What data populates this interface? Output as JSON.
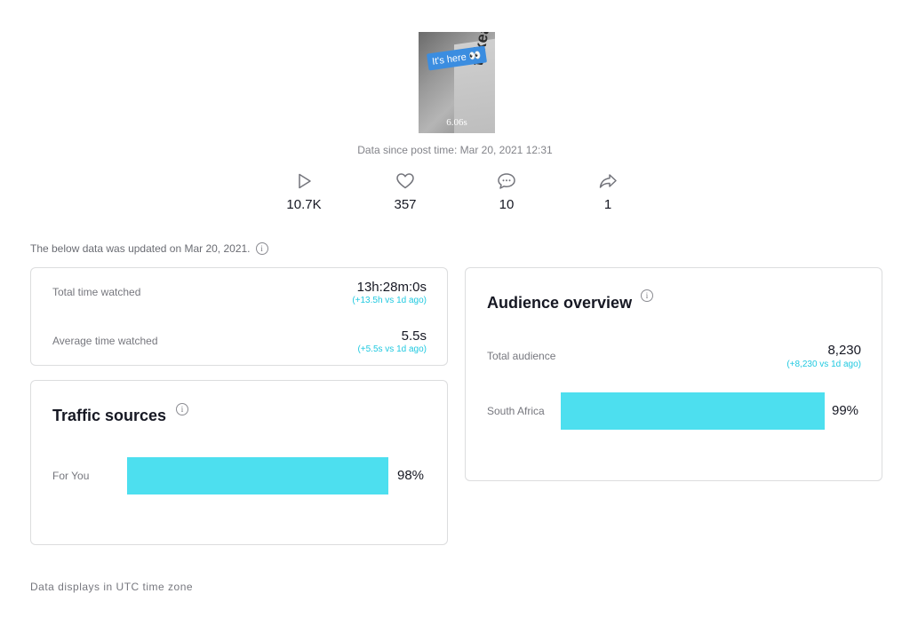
{
  "video": {
    "sticker_text": "It's here 👀",
    "brand_text": "takea",
    "duration": "6.06s"
  },
  "since_text": "Data since post time: Mar 20, 2021 12:31",
  "stats": [
    {
      "icon": "play-icon",
      "value": "10.7K"
    },
    {
      "icon": "heart-icon",
      "value": "357"
    },
    {
      "icon": "comment-icon",
      "value": "10"
    },
    {
      "icon": "share-icon",
      "value": "1"
    }
  ],
  "updated_text": "The below data was updated on Mar 20, 2021.",
  "watch": {
    "total_label": "Total time watched",
    "total_value": "13h:28m:0s",
    "total_delta": "(+13.5h vs 1d ago)",
    "avg_label": "Average time watched",
    "avg_value": "5.5s",
    "avg_delta": "(+5.5s vs 1d ago)"
  },
  "traffic": {
    "title": "Traffic sources",
    "source_label": "For You",
    "source_percent": "98%",
    "source_fraction": 0.98
  },
  "audience": {
    "title": "Audience overview",
    "total_label": "Total audience",
    "total_value": "8,230",
    "total_delta": "(+8,230 vs 1d ago)",
    "region_label": "South Africa",
    "region_percent": "99%",
    "region_fraction": 0.99
  },
  "footer": "Data displays in UTC time zone",
  "colors": {
    "accent_bar": "#4ddfef",
    "delta_text": "#20c9e0"
  }
}
